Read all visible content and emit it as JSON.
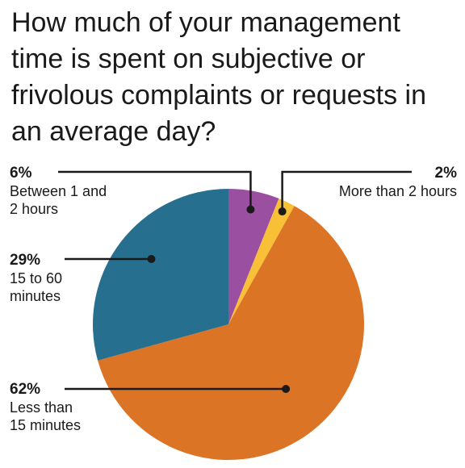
{
  "title": "How much of your management time is spent on subjective or frivolous complaints or requests in an average day?",
  "chart_data": {
    "type": "pie",
    "title": "How much of your management time is spent on subjective or frivolous complaints or requests in an average day?",
    "start_angle_deg": 0,
    "direction": "clockwise",
    "slices": [
      {
        "label": "Between 1 and 2 hours",
        "value": 6,
        "value_label": "6%",
        "color": "#9b4fa0"
      },
      {
        "label": "More than 2 hours",
        "value": 2,
        "value_label": "2%",
        "color": "#f8c037"
      },
      {
        "label": "Less than 15 minutes",
        "value": 62,
        "value_label": "62%",
        "color": "#dc7426"
      },
      {
        "label": "15 to 60 minutes",
        "value": 29,
        "value_label": "29%",
        "color": "#276f8f"
      }
    ]
  },
  "labels": {
    "purple": {
      "pct": "6%",
      "desc": "Between 1 and 2 hours"
    },
    "yellow": {
      "pct": "2%",
      "desc": "More than 2 hours"
    },
    "blue": {
      "pct": "29%",
      "desc": "15 to 60 minutes"
    },
    "orange": {
      "pct": "62%",
      "desc": "Less than 15 minutes"
    }
  }
}
